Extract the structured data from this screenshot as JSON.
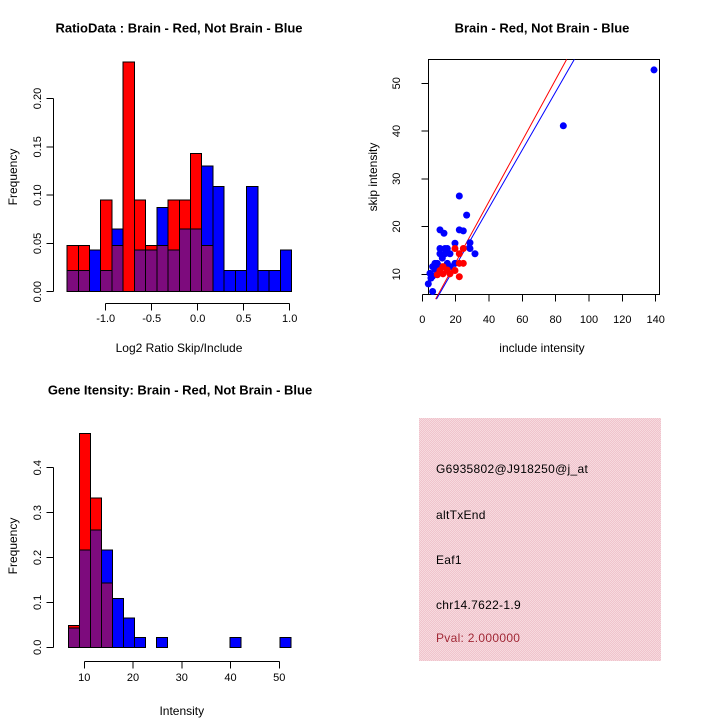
{
  "figure": {
    "background": "#ffffff",
    "colors": {
      "red": "#ff0000",
      "blue": "#0000ff",
      "purple": "#7d0b7d",
      "axis": "#000000",
      "info_box_pink": "#f0c3cc",
      "pval_red": "#a12836"
    }
  },
  "chart_data": [
    {
      "id": "ratio_histogram",
      "type": "bar",
      "subtype": "overlaid-histogram",
      "title": "RatioData : Brain - Red, Not Brain - Blue",
      "xlabel": "Log2 Ratio Skip/Include",
      "ylabel": "Frequency",
      "legend": "Brain = red, Not Brain = blue, overlap = purple",
      "x_ticks": {
        "values": [
          -1.0,
          -0.5,
          0.0,
          0.5,
          1.0
        ],
        "labels": [
          "-1.0",
          "-0.5",
          "0.0",
          "0.5",
          "1.0"
        ]
      },
      "y_ticks": {
        "values": [
          0,
          0.05,
          0.1,
          0.15,
          0.2
        ],
        "labels": [
          "0.00",
          "0.05",
          "0.10",
          "0.15",
          "0.20"
        ]
      },
      "xlim": [
        -1.42,
        1.02
      ],
      "ylim": [
        0,
        0.238
      ],
      "bin_start": -1.42,
      "bin_width": 0.122,
      "series": [
        {
          "name": "Brain",
          "color_key": "red",
          "values": [
            0.048,
            0.048,
            0,
            0.095,
            0.048,
            0.238,
            0.095,
            0.048,
            0.048,
            0.095,
            0.095,
            0.143,
            0.048,
            0,
            0,
            0,
            0,
            0,
            0,
            0
          ]
        },
        {
          "name": "Not Brain",
          "color_key": "blue",
          "values": [
            0.022,
            0.022,
            0.043,
            0.022,
            0.065,
            0,
            0.043,
            0.043,
            0.087,
            0.043,
            0.065,
            0.065,
            0.13,
            0.109,
            0.022,
            0.022,
            0.109,
            0.022,
            0.022,
            0.043
          ]
        }
      ]
    },
    {
      "id": "intensity_scatter",
      "type": "scatter",
      "title": "Brain - Red, Not Brain - Blue",
      "xlabel": "include intensity",
      "ylabel": "skip intensity",
      "x_ticks": {
        "values": [
          0,
          20,
          40,
          60,
          80,
          100,
          120,
          140
        ],
        "labels": [
          "0",
          "20",
          "40",
          "60",
          "80",
          "100",
          "120",
          "140"
        ]
      },
      "y_ticks": {
        "values": [
          10,
          20,
          30,
          40,
          50
        ],
        "labels": [
          "10",
          "20",
          "30",
          "40",
          "50"
        ]
      },
      "xlim": [
        3.8,
        142.5
      ],
      "ylim": [
        4.8,
        55.0
      ],
      "series": [
        {
          "name": "Not Brain",
          "color_key": "blue",
          "points": [
            [
              3.6,
              8.0
            ],
            [
              6.2,
              6.4
            ],
            [
              6.2,
              9.6
            ],
            [
              4.6,
              10.2
            ],
            [
              5.2,
              9.2
            ],
            [
              7.6,
              11.0
            ],
            [
              6.2,
              11.6
            ],
            [
              9.0,
              12.3
            ],
            [
              7.6,
              12.3
            ],
            [
              9.0,
              10.9
            ],
            [
              10.6,
              11.6
            ],
            [
              10.6,
              14.3
            ],
            [
              12.0,
              13.4
            ],
            [
              10.6,
              15.4
            ],
            [
              13.6,
              15.4
            ],
            [
              13.6,
              14.3
            ],
            [
              15.0,
              15.4
            ],
            [
              15.0,
              12.3
            ],
            [
              16.6,
              14.3
            ],
            [
              16.6,
              11.6
            ],
            [
              10.6,
              19.3
            ],
            [
              13.0,
              18.6
            ],
            [
              19.6,
              16.5
            ],
            [
              19.6,
              12.3
            ],
            [
              22.2,
              26.4
            ],
            [
              26.6,
              22.4
            ],
            [
              22.2,
              19.3
            ],
            [
              24.6,
              19.1
            ],
            [
              28.6,
              16.6
            ],
            [
              28.6,
              15.4
            ],
            [
              31.6,
              14.3
            ],
            [
              84.6,
              41.1
            ],
            [
              139.0,
              52.8
            ]
          ]
        },
        {
          "name": "Brain",
          "color_key": "red",
          "points": [
            [
              9.0,
              9.9
            ],
            [
              10.6,
              10.8
            ],
            [
              12.4,
              11.6
            ],
            [
              12.4,
              10.1
            ],
            [
              15.0,
              10.9
            ],
            [
              16.6,
              10.1
            ],
            [
              19.6,
              10.8
            ],
            [
              19.6,
              15.4
            ],
            [
              22.2,
              12.3
            ],
            [
              22.2,
              14.3
            ],
            [
              22.2,
              9.5
            ],
            [
              24.6,
              15.4
            ],
            [
              24.6,
              12.3
            ]
          ]
        }
      ],
      "fit_lines": [
        {
          "color_key": "red",
          "x1": 8.0,
          "y1": 4.8,
          "x2": 86.6,
          "y2": 55.0
        },
        {
          "color_key": "blue",
          "x1": 8.5,
          "y1": 4.8,
          "x2": 91.2,
          "y2": 55.0
        }
      ]
    },
    {
      "id": "gene_intensity_histogram",
      "type": "bar",
      "subtype": "overlaid-histogram",
      "title": "Gene Itensity: Brain - Red, Not Brain - Blue",
      "xlabel": "Intensity",
      "ylabel": "Frequency",
      "x_ticks": {
        "values": [
          10,
          20,
          30,
          40,
          50
        ],
        "labels": [
          "10",
          "20",
          "30",
          "40",
          "50"
        ]
      },
      "y_ticks": {
        "values": [
          0,
          0.1,
          0.2,
          0.3,
          0.4
        ],
        "labels": [
          "0.0",
          "0.1",
          "0.2",
          "0.3",
          "0.4"
        ]
      },
      "xlim": [
        6.7,
        52.5
      ],
      "ylim": [
        0,
        0.476
      ],
      "bin_width": 2.26,
      "bars": [
        {
          "x": 6.72,
          "red": 0.048,
          "blue": 0.043
        },
        {
          "x": 8.98,
          "red": 0.476,
          "blue": 0.217
        },
        {
          "x": 11.24,
          "red": 0.333,
          "blue": 0.261
        },
        {
          "x": 13.5,
          "red": 0.143,
          "blue": 0.217
        },
        {
          "x": 15.76,
          "red": 0,
          "blue": 0.109
        },
        {
          "x": 18.02,
          "red": 0,
          "blue": 0.065
        },
        {
          "x": 20.28,
          "red": 0,
          "blue": 0.022
        },
        {
          "x": 24.8,
          "red": 0,
          "blue": 0.022
        },
        {
          "x": 39.9,
          "red": 0,
          "blue": 0.022
        },
        {
          "x": 50.15,
          "red": 0,
          "blue": 0.022
        }
      ]
    }
  ],
  "info_panel": {
    "probe_id": "G6935802@J918250@j_at",
    "event_type": "altTxEnd",
    "gene": "Eaf1",
    "locus": "chr14.7622-1.9",
    "pval": "Pval: 2.000000"
  }
}
